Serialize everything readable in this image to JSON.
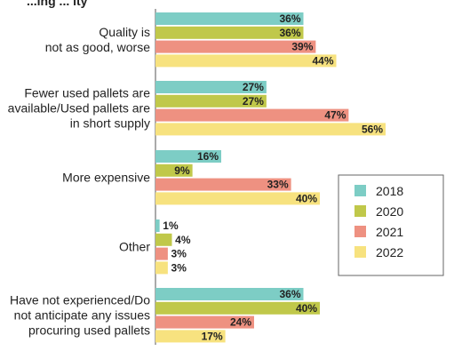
{
  "chart_data": {
    "type": "bar",
    "orientation": "horizontal",
    "title": "...ing ... ity",
    "categories": [
      [
        "Quality is",
        "not as good, worse"
      ],
      [
        "Fewer used pallets are",
        "available/Used pallets are",
        "in short supply"
      ],
      [
        "More expensive"
      ],
      [
        "Other"
      ],
      [
        "Have not experienced/Do",
        "not anticipate any issues",
        "procuring used pallets"
      ]
    ],
    "series": [
      {
        "name": "2018",
        "color": "#7dcdc5",
        "values": [
          36,
          27,
          16,
          1,
          36
        ]
      },
      {
        "name": "2020",
        "color": "#c0c84a",
        "values": [
          36,
          27,
          9,
          4,
          40
        ]
      },
      {
        "name": "2021",
        "color": "#ee9181",
        "values": [
          39,
          47,
          33,
          3,
          24
        ]
      },
      {
        "name": "2022",
        "color": "#f7e27f",
        "values": [
          44,
          56,
          40,
          3,
          17
        ]
      }
    ],
    "value_suffix": "%",
    "xlim": [
      0,
      56
    ],
    "legend_position": "right",
    "grid": false
  }
}
